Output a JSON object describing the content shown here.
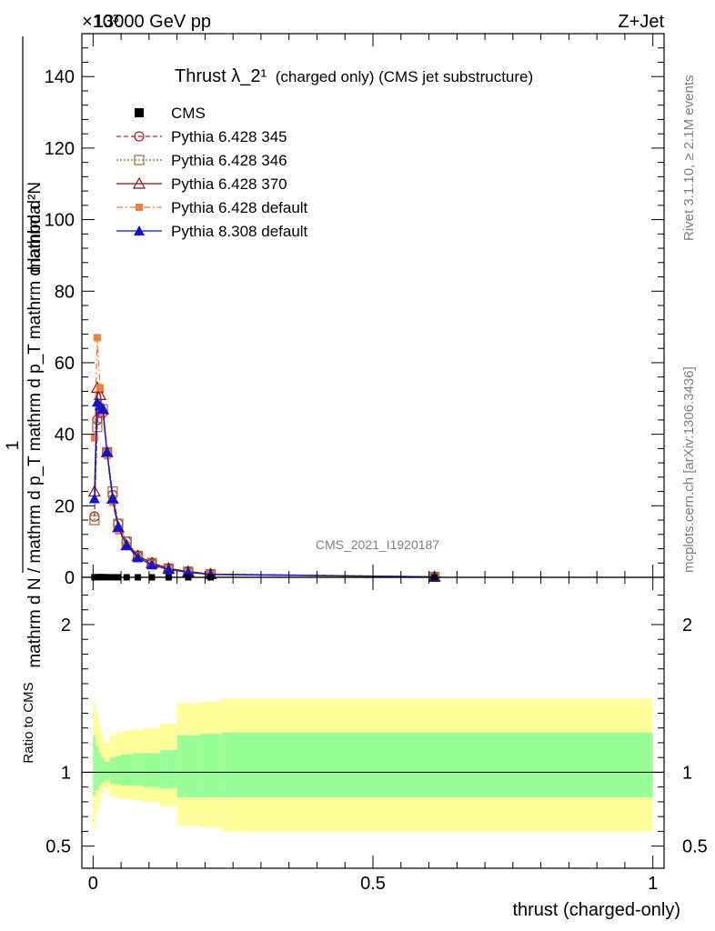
{
  "header": {
    "energy_label": "13000 GeV pp",
    "process_label": "Z+Jet",
    "exponent_label": "×10³"
  },
  "side_labels": {
    "rivet": "Rivet 3.1.10, ≥ 2.1M events",
    "mcplots": "mcplots.cern.ch [arXiv:1306.3436]"
  },
  "watermark": "CMS_2021_I1920187",
  "chart_data": [
    {
      "type": "line",
      "title": "Thrust λ_2¹",
      "subtitle": "(charged only) (CMS jet substructure)",
      "ylabel_numerator": "1",
      "ylabel_denominator": "mathrm d N / mathrm d p_T mathrm d p_T mathrm d lambda",
      "ylabel_numerator_top": "mathrm d²N",
      "xlabel": "thrust (charged-only)",
      "xlim": [
        -0.02,
        1.02
      ],
      "ylim": [
        0,
        152
      ],
      "y_ticks": [
        0,
        20,
        40,
        60,
        80,
        100,
        120,
        140
      ],
      "x_ticks": [
        0,
        0.5,
        1
      ],
      "x_tick_labels": [
        "0",
        "0.5",
        "1"
      ],
      "legend_position": "top-left",
      "cms_data": {
        "name": "CMS",
        "color": "#000000",
        "x": [
          0.0025,
          0.0075,
          0.0125,
          0.0175,
          0.025,
          0.035,
          0.045,
          0.06,
          0.08,
          0.105,
          0.135,
          0.17,
          0.21,
          0.61
        ],
        "y": [
          0.017,
          0.045,
          0.05,
          0.048,
          0.035,
          0.022,
          0.014,
          0.009,
          0.0055,
          0.0035,
          0.0022,
          0.0014,
          0.0008,
          0.00015
        ]
      },
      "series": [
        {
          "name": "Pythia 6.428 345",
          "color": "#b2242d",
          "style": "dashed",
          "marker": "circle-open",
          "x": [
            0.0025,
            0.0075,
            0.0125,
            0.0175,
            0.025,
            0.035,
            0.045,
            0.06,
            0.08,
            0.105,
            0.135,
            0.17,
            0.21,
            0.61
          ],
          "y": [
            17,
            44,
            46,
            46,
            35,
            23,
            15,
            10,
            6,
            4,
            2.5,
            1.6,
            0.9,
            0.15
          ]
        },
        {
          "name": "Pythia 6.428 346",
          "color": "#9a7038",
          "style": "dotted",
          "marker": "square-open",
          "x": [
            0.0025,
            0.0075,
            0.0125,
            0.0175,
            0.025,
            0.035,
            0.045,
            0.06,
            0.08,
            0.105,
            0.135,
            0.17,
            0.21,
            0.61
          ],
          "y": [
            16,
            42,
            47,
            47,
            35,
            24,
            15,
            10,
            6,
            4,
            2.5,
            1.6,
            0.9,
            0.15
          ]
        },
        {
          "name": "Pythia 6.428 370",
          "color": "#8b1010",
          "style": "solid",
          "marker": "triangle-open",
          "x": [
            0.0025,
            0.0075,
            0.0125,
            0.0175,
            0.025,
            0.035,
            0.045,
            0.06,
            0.08,
            0.105,
            0.135,
            0.17,
            0.21,
            0.61
          ],
          "y": [
            24,
            53,
            51,
            47,
            35,
            22,
            14,
            9,
            6,
            4,
            2.5,
            1.6,
            0.9,
            0.15
          ]
        },
        {
          "name": "Pythia 6.428 default",
          "color": "#f57f38",
          "style": "dashdot",
          "marker": "square-filled",
          "x": [
            0.0025,
            0.0075,
            0.0125,
            0.0175,
            0.025,
            0.035,
            0.045,
            0.06,
            0.08,
            0.105,
            0.135,
            0.17,
            0.21,
            0.61
          ],
          "y": [
            39,
            67,
            53,
            46,
            34,
            21,
            13,
            9,
            5.5,
            3.5,
            2.2,
            1.4,
            0.8,
            0.1
          ]
        },
        {
          "name": "Pythia 8.308 default",
          "color": "#0d14d9",
          "style": "solid",
          "marker": "triangle-filled",
          "x": [
            0.0025,
            0.0075,
            0.0125,
            0.0175,
            0.025,
            0.035,
            0.045,
            0.06,
            0.08,
            0.105,
            0.135,
            0.17,
            0.21,
            0.61
          ],
          "y": [
            22,
            49,
            48,
            47,
            35,
            22,
            14,
            9,
            5.5,
            3.5,
            2.2,
            1.4,
            0.8,
            0.1
          ]
        }
      ]
    },
    {
      "type": "area",
      "ylabel": "Ratio to CMS",
      "xlabel": "thrust (charged-only)",
      "xlim": [
        -0.02,
        1.02
      ],
      "ylim": [
        0.35,
        2.32
      ],
      "y_ticks": [
        0.5,
        1,
        2
      ],
      "y_tick_labels": [
        "0.5",
        "1",
        "2"
      ],
      "reference_line": 1,
      "bands": {
        "edges": [
          0,
          0.005,
          0.01,
          0.015,
          0.02,
          0.03,
          0.04,
          0.05,
          0.07,
          0.09,
          0.12,
          0.15,
          0.19,
          0.23,
          1.0
        ],
        "outer_low": [
          0.62,
          0.72,
          0.8,
          0.86,
          0.89,
          0.84,
          0.83,
          0.82,
          0.81,
          0.8,
          0.77,
          0.64,
          0.63,
          0.6
        ],
        "outer_high": [
          1.47,
          1.4,
          1.32,
          1.25,
          1.2,
          1.25,
          1.27,
          1.28,
          1.29,
          1.3,
          1.33,
          1.47,
          1.48,
          1.5
        ],
        "inner_low": [
          0.84,
          0.88,
          0.91,
          0.93,
          0.95,
          0.92,
          0.92,
          0.91,
          0.91,
          0.9,
          0.89,
          0.83,
          0.83,
          0.83
        ],
        "inner_high": [
          1.25,
          1.18,
          1.13,
          1.1,
          1.07,
          1.1,
          1.11,
          1.12,
          1.13,
          1.13,
          1.15,
          1.25,
          1.26,
          1.27
        ],
        "outer_color": "#ffff99",
        "inner_color": "#99ff99"
      }
    }
  ]
}
